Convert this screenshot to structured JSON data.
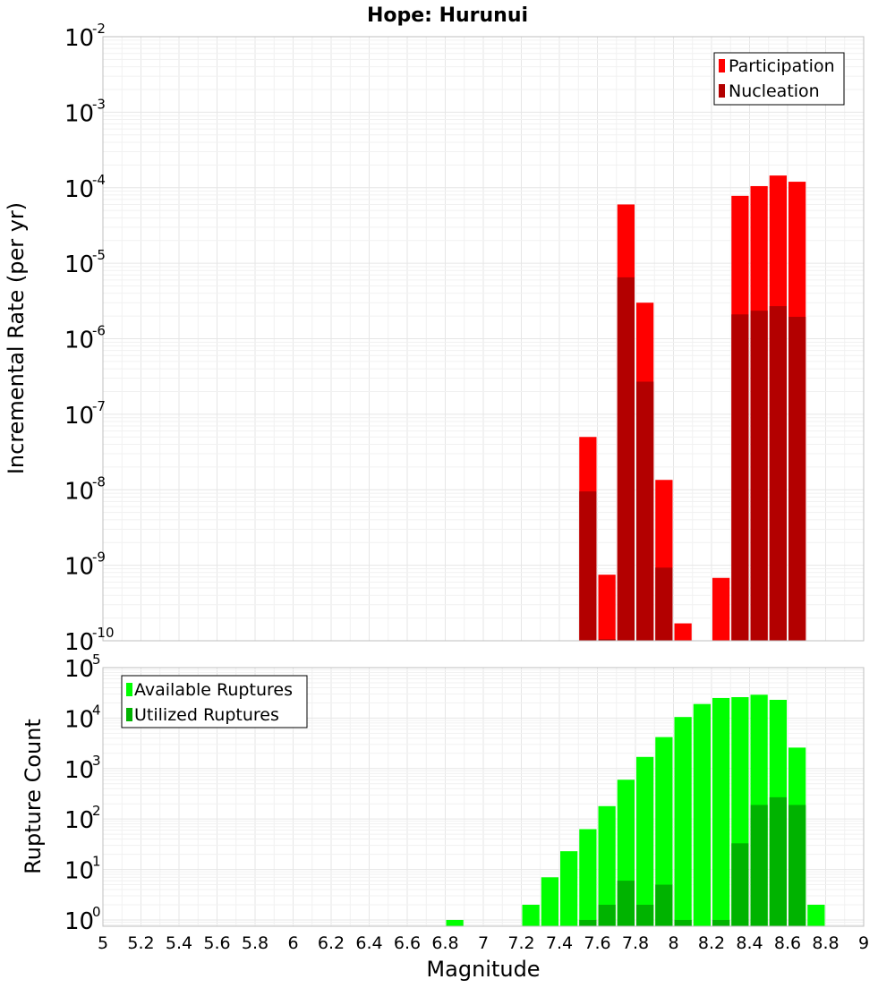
{
  "chart_data": [
    {
      "type": "bar",
      "title": "Hope: Hurunui",
      "xlabel": "",
      "ylabel": "Incremental Rate (per yr)",
      "yscale": "log",
      "xlim": [
        5,
        9
      ],
      "ylim": [
        1e-10,
        0.01
      ],
      "ytick_exponents": [
        -10,
        -9,
        -8,
        -7,
        -6,
        -5,
        -4,
        -3,
        -2
      ],
      "bin_width": 0.1,
      "grid": true,
      "legend_position": "top-right",
      "series": [
        {
          "name": "Participation",
          "color": "#ff0000",
          "x": [
            7.55,
            7.65,
            7.75,
            7.85,
            7.95,
            8.05,
            8.25,
            8.35,
            8.45,
            8.55,
            8.65
          ],
          "values": [
            5e-08,
            7.5e-10,
            6e-05,
            3e-06,
            1.35e-08,
            1.7e-10,
            6.8e-10,
            7.8e-05,
            0.000105,
            0.000145,
            0.00012
          ]
        },
        {
          "name": "Nucleation",
          "color": "#b30000",
          "x": [
            7.55,
            7.65,
            7.75,
            7.85,
            7.95,
            8.35,
            8.45,
            8.55,
            8.65
          ],
          "values": [
            9.5e-09,
            1.05e-10,
            6.5e-06,
            2.7e-07,
            9.3e-10,
            2.1e-06,
            2.35e-06,
            2.7e-06,
            1.95e-06
          ]
        }
      ]
    },
    {
      "type": "bar",
      "title": "",
      "xlabel": "Magnitude",
      "ylabel": "Rupture Count",
      "yscale": "log",
      "xlim": [
        5,
        9
      ],
      "ylim": [
        0.75,
        100000
      ],
      "ytick_exponents": [
        0,
        1,
        2,
        3,
        4,
        5
      ],
      "xticks": [
        "5",
        "5.2",
        "5.4",
        "5.6",
        "5.8",
        "6",
        "6.2",
        "6.4",
        "6.6",
        "6.8",
        "7",
        "7.2",
        "7.4",
        "7.6",
        "7.8",
        "8",
        "8.2",
        "8.4",
        "8.6",
        "8.8",
        "9"
      ],
      "bin_width": 0.1,
      "grid": true,
      "legend_position": "top-left",
      "series": [
        {
          "name": "Available Ruptures",
          "color": "#00ff00",
          "x": [
            6.85,
            7.25,
            7.35,
            7.45,
            7.55,
            7.65,
            7.75,
            7.85,
            7.95,
            8.05,
            8.15,
            8.25,
            8.35,
            8.45,
            8.55,
            8.65,
            8.75
          ],
          "values": [
            1,
            2,
            7,
            23,
            63,
            180,
            600,
            1700,
            4200,
            10500,
            19000,
            25000,
            26000,
            29000,
            23000,
            2600,
            2
          ]
        },
        {
          "name": "Utilized Ruptures",
          "color": "#00b300",
          "x": [
            7.55,
            7.65,
            7.75,
            7.85,
            7.95,
            8.05,
            8.25,
            8.35,
            8.45,
            8.55,
            8.65
          ],
          "values": [
            1,
            2,
            6,
            2,
            5,
            1,
            1,
            33,
            190,
            270,
            190
          ]
        }
      ]
    }
  ]
}
